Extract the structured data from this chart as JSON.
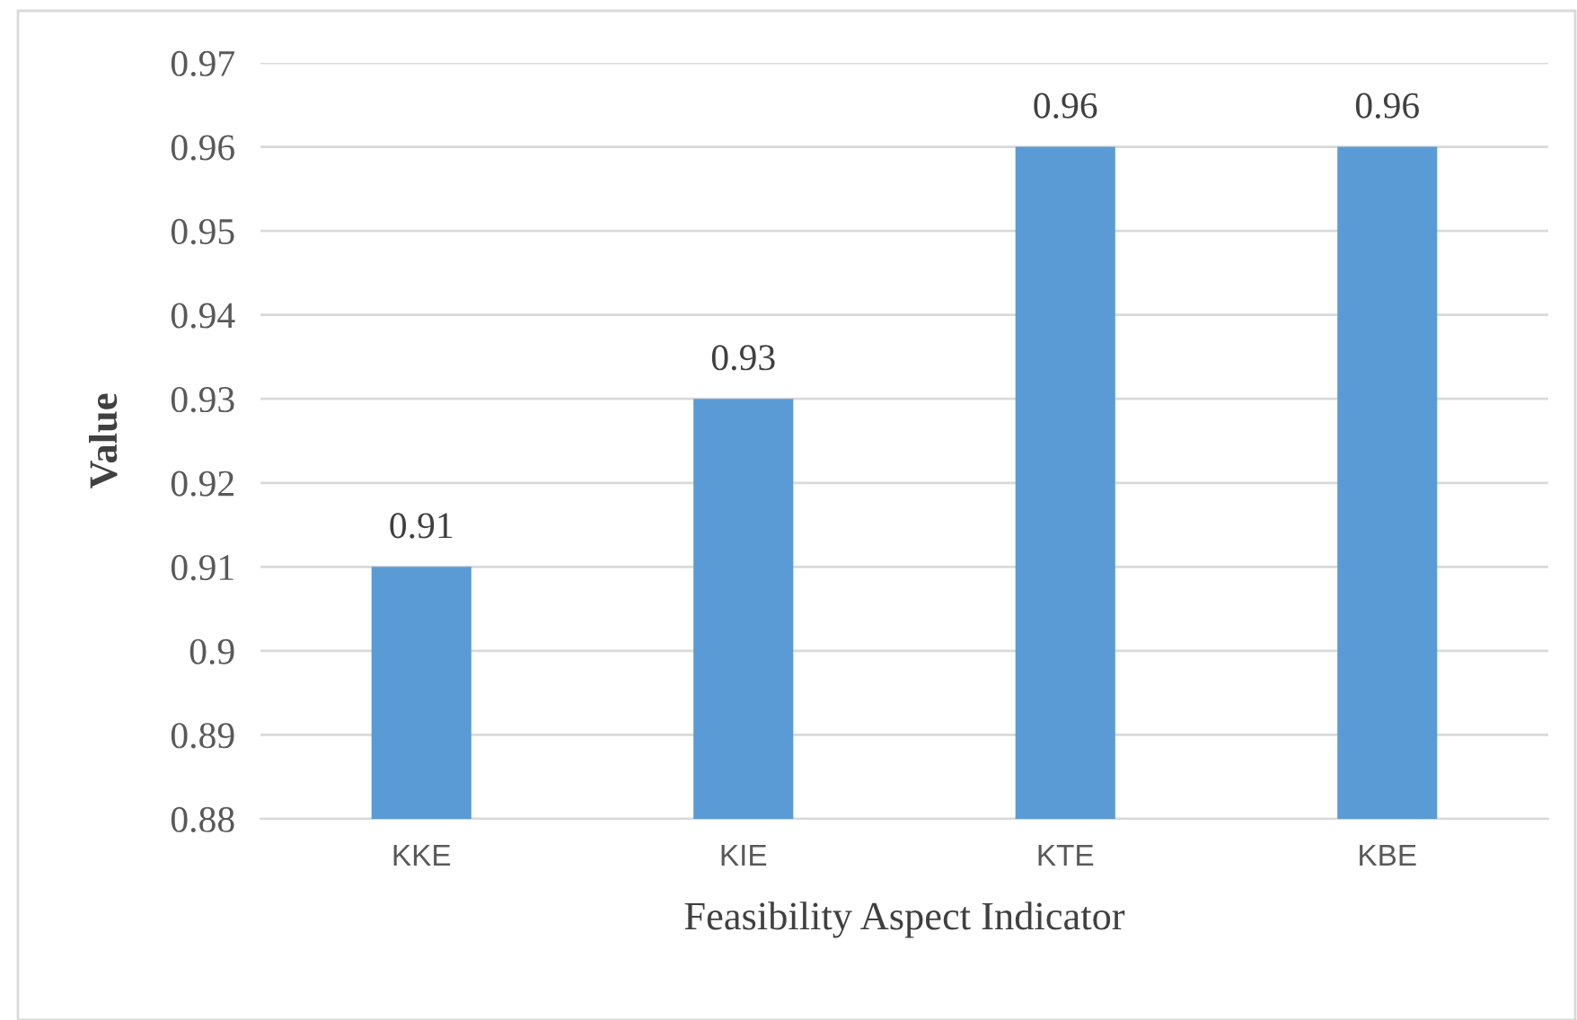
{
  "chart_data": {
    "type": "bar",
    "xlabel": "Feasibility Aspect Indicator",
    "ylabel": "Value",
    "categories": [
      "KKE",
      "KIE",
      "KTE",
      "KBE"
    ],
    "values": [
      0.91,
      0.93,
      0.96,
      0.96
    ],
    "color": "#5b9bd5",
    "ylim": [
      0.88,
      0.97
    ],
    "yticks": [
      0.88,
      0.89,
      0.9,
      0.91,
      0.92,
      0.93,
      0.94,
      0.95,
      0.96,
      0.97
    ],
    "grid": "y",
    "data_labels": true
  }
}
